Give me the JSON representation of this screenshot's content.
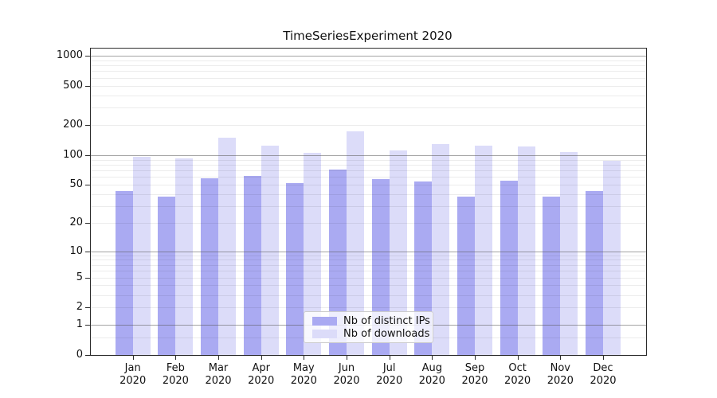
{
  "title": "TimeSeriesExperiment 2020",
  "chart_data": {
    "type": "bar",
    "title": "TimeSeriesExperiment 2020",
    "categories": [
      "Jan 2020",
      "Feb 2020",
      "Mar 2020",
      "Apr 2020",
      "May 2020",
      "Jun 2020",
      "Jul 2020",
      "Aug 2020",
      "Sep 2020",
      "Oct 2020",
      "Nov 2020",
      "Dec 2020"
    ],
    "series": [
      {
        "name": "Nb of distinct IPs",
        "color": "#aaaaf2",
        "values": [
          43,
          38,
          58,
          62,
          52,
          72,
          57,
          54,
          38,
          55,
          38,
          43
        ]
      },
      {
        "name": "Nb of downloads",
        "color": "#dcdcf9",
        "values": [
          97,
          93,
          151,
          125,
          106,
          175,
          111,
          129,
          125,
          122,
          107,
          88
        ]
      }
    ],
    "xlabel": "",
    "ylabel": "",
    "yscale": "log1p",
    "ylim": [
      0,
      1180
    ],
    "y_ticks": [
      0,
      1,
      2,
      5,
      10,
      20,
      50,
      100,
      200,
      500,
      1000
    ],
    "gridlines": {
      "major": [
        1,
        10,
        100,
        1000
      ],
      "minor": [
        0.5,
        2,
        3,
        4,
        5,
        6,
        7,
        8,
        9,
        20,
        30,
        40,
        50,
        60,
        70,
        80,
        90,
        200,
        300,
        400,
        500,
        600,
        700,
        800,
        900
      ]
    },
    "grid": "horizontal",
    "legend_position": "inside-bottom-center"
  },
  "legend": {
    "items": [
      {
        "label": "Nb of distinct IPs",
        "color": "#aaaaf2"
      },
      {
        "label": "Nb of downloads",
        "color": "#dcdcf9"
      }
    ]
  }
}
